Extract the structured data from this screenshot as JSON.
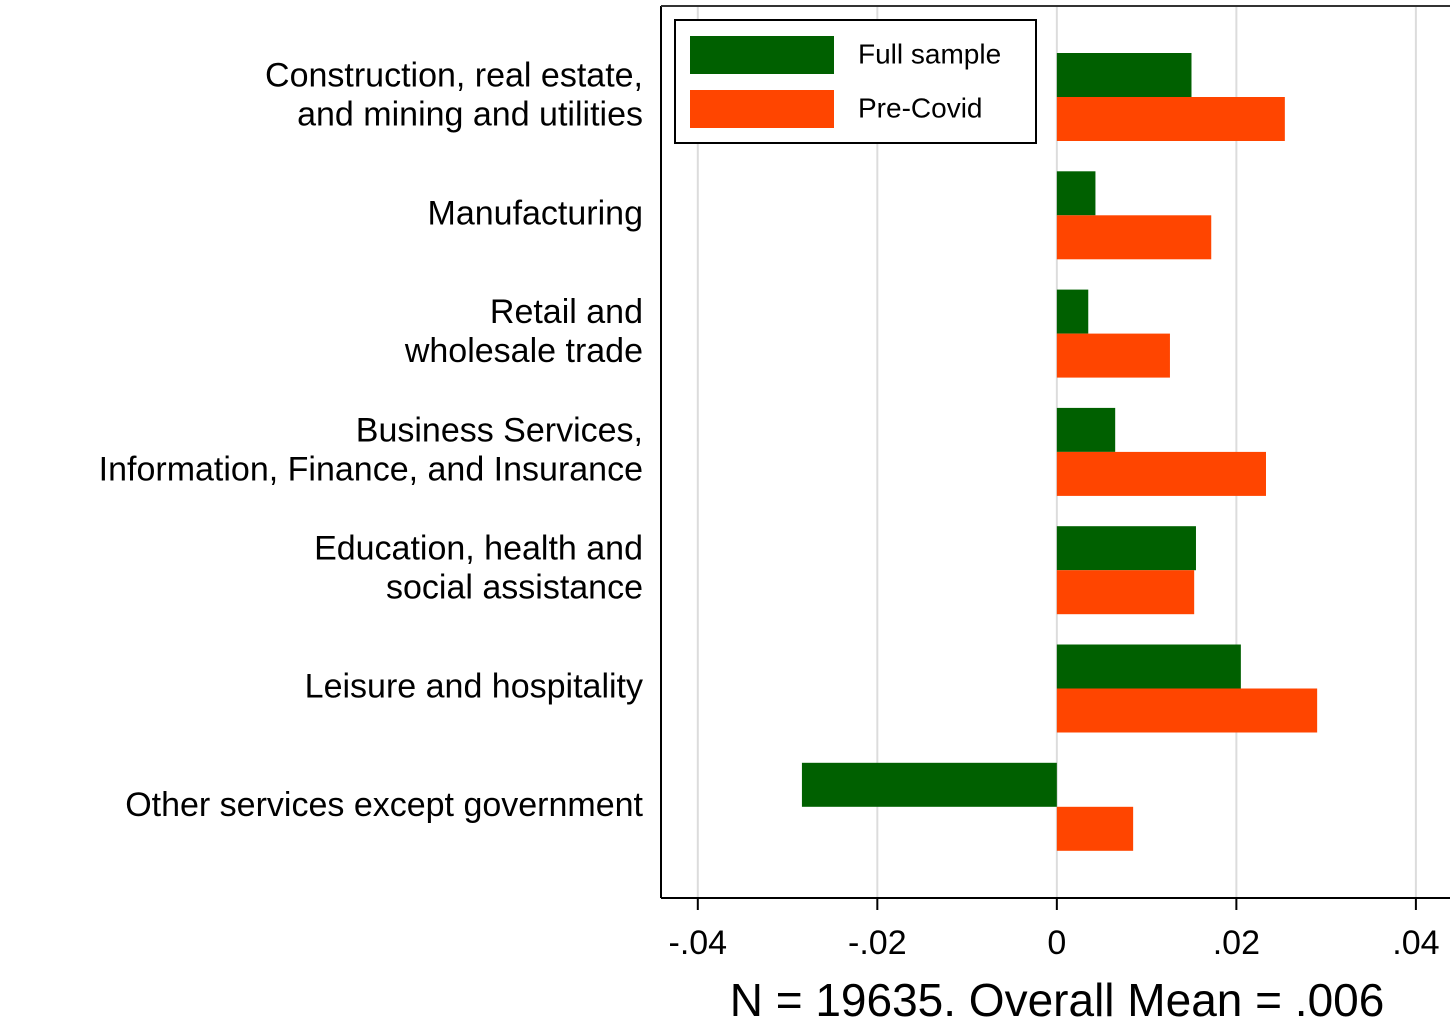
{
  "chart_data": {
    "type": "barh",
    "x_label": "N = 19635. Overall Mean = .006",
    "categories": [
      [
        "Construction, real estate,",
        "and mining and utilities"
      ],
      [
        "Manufacturing"
      ],
      [
        "Retail and",
        "wholesale trade"
      ],
      [
        "Business Services,",
        "Information, Finance, and Insurance"
      ],
      [
        "Education, health and",
        "social assistance"
      ],
      [
        "Leisure and hospitality"
      ],
      [
        "Other services except government"
      ]
    ],
    "series": [
      {
        "name": "Full sample",
        "color": "#006000",
        "values": [
          0.015,
          0.0043,
          0.0035,
          0.0065,
          0.0155,
          0.0205,
          -0.0284
        ]
      },
      {
        "name": "Pre-Covid",
        "color": "#ff4500",
        "values": [
          0.0254,
          0.0172,
          0.0126,
          0.0233,
          0.0153,
          0.029,
          0.0085
        ]
      }
    ],
    "xlim": [
      -0.0441,
      0.0438
    ],
    "xticks": [
      {
        "value": -0.04,
        "label": "-.04"
      },
      {
        "value": -0.02,
        "label": "-.02"
      },
      0,
      {
        "value": 0.02,
        "label": ".02"
      },
      {
        "value": 0.04,
        "label": ".04"
      }
    ],
    "grid": true,
    "legend": "upper left"
  }
}
